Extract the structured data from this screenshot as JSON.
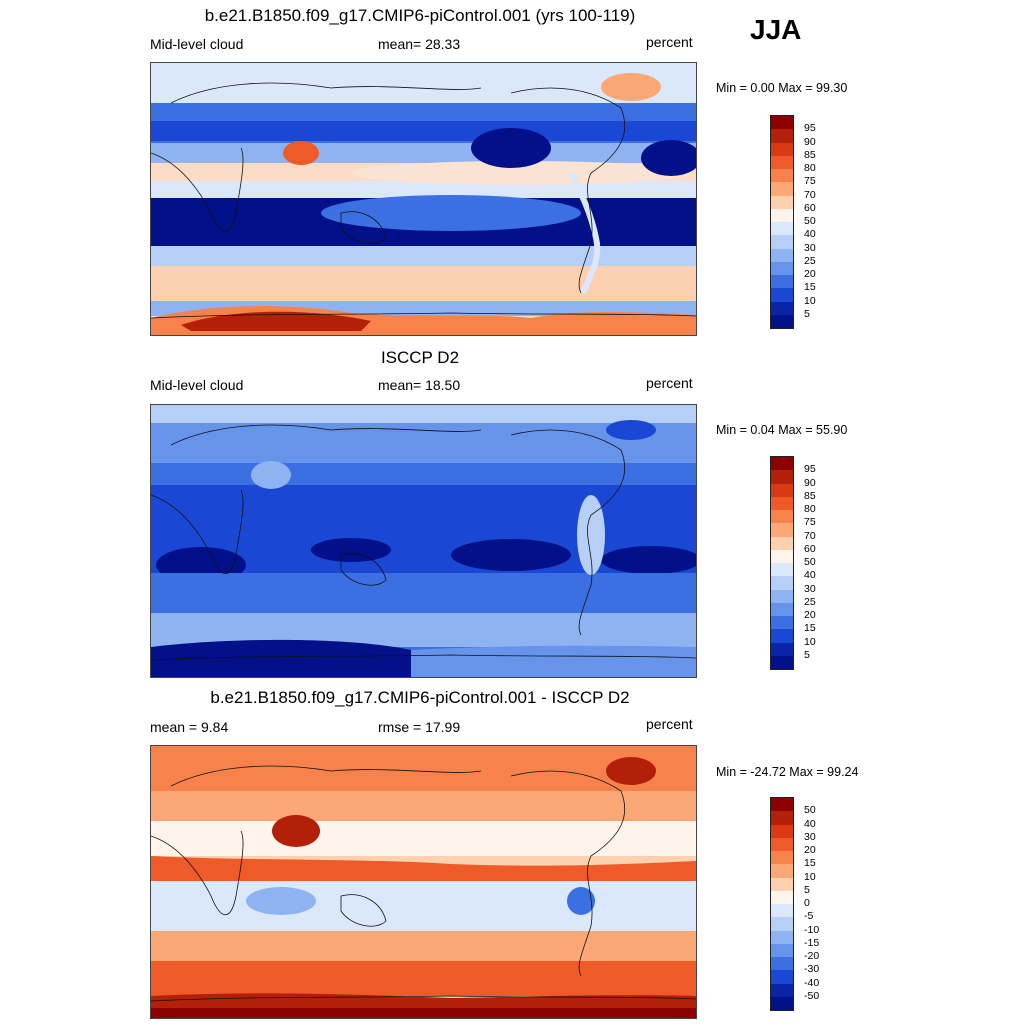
{
  "season": "JJA",
  "panels": [
    {
      "title": "b.e21.B1850.f09_g17.CMIP6-piControl.001 (yrs 100-119)",
      "left_label": "Mid-level cloud",
      "center_label": "mean=  28.33",
      "right_label": "percent",
      "minmax": "Min =   0.00 Max =  99.30",
      "colorbar_labels": [
        "95",
        "90",
        "85",
        "80",
        "75",
        "70",
        "60",
        "50",
        "40",
        "30",
        "25",
        "20",
        "15",
        "10",
        "5"
      ],
      "colorbar_colors": [
        "#8b0000",
        "#b3200a",
        "#d93a14",
        "#ee5a28",
        "#f7824b",
        "#fba876",
        "#fdd0b0",
        "#fff4ec",
        "#dbe8fb",
        "#b6cff6",
        "#8fb3f0",
        "#6694ea",
        "#3b6fe2",
        "#1a48d4",
        "#0a24a8",
        "#02108a"
      ]
    },
    {
      "title": "ISCCP D2",
      "left_label": "Mid-level cloud",
      "center_label": "mean=  18.50",
      "right_label": "percent",
      "minmax": "Min =   0.04 Max =  55.90",
      "colorbar_labels": [
        "95",
        "90",
        "85",
        "80",
        "75",
        "70",
        "60",
        "50",
        "40",
        "30",
        "25",
        "20",
        "15",
        "10",
        "5"
      ],
      "colorbar_colors": [
        "#8b0000",
        "#b3200a",
        "#d93a14",
        "#ee5a28",
        "#f7824b",
        "#fba876",
        "#fdd0b0",
        "#fff4ec",
        "#dbe8fb",
        "#b6cff6",
        "#8fb3f0",
        "#6694ea",
        "#3b6fe2",
        "#1a48d4",
        "#0a24a8",
        "#02108a"
      ]
    },
    {
      "title": "b.e21.B1850.f09_g17.CMIP6-piControl.001 - ISCCP D2",
      "left_label": "mean =   9.84",
      "center_label": "rmse =  17.99",
      "right_label": "percent",
      "minmax": "Min = -24.72 Max =  99.24",
      "colorbar_labels": [
        "50",
        "40",
        "30",
        "20",
        "15",
        "10",
        "5",
        "0",
        "-5",
        "-10",
        "-15",
        "-20",
        "-30",
        "-40",
        "-50"
      ],
      "colorbar_colors": [
        "#8b0000",
        "#b3200a",
        "#d93a14",
        "#ee5a28",
        "#f7824b",
        "#fba876",
        "#fdd0b0",
        "#fff4ec",
        "#dbe8fb",
        "#b6cff6",
        "#8fb3f0",
        "#6694ea",
        "#3b6fe2",
        "#1a48d4",
        "#0a24a8",
        "#02108a"
      ]
    }
  ]
}
